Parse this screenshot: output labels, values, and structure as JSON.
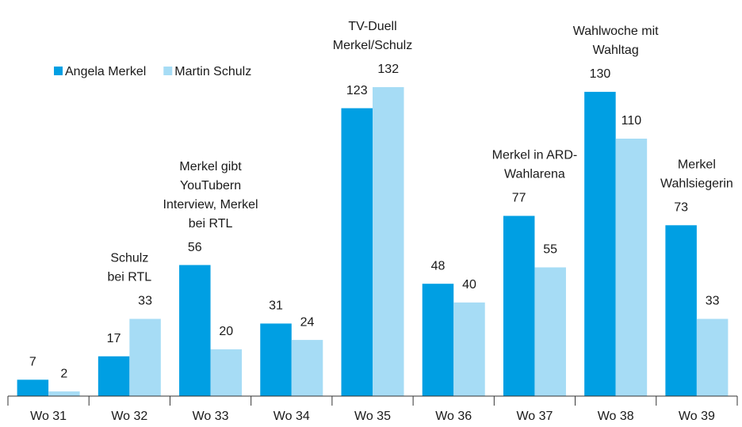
{
  "chart_data": {
    "type": "bar",
    "categories": [
      "Wo 31",
      "Wo 32",
      "Wo 33",
      "Wo 34",
      "Wo 35",
      "Wo 36",
      "Wo 37",
      "Wo 38",
      "Wo 39"
    ],
    "series": [
      {
        "name": "Angela Merkel",
        "color": "#009fe3",
        "values": [
          7,
          17,
          56,
          31,
          123,
          48,
          77,
          130,
          73
        ]
      },
      {
        "name": "Martin Schulz",
        "color": "#a6dcf5",
        "values": [
          2,
          33,
          20,
          24,
          132,
          40,
          55,
          110,
          33
        ]
      }
    ],
    "annotations": [
      {
        "category": "Wo 32",
        "lines": [
          "Schulz",
          "bei RTL"
        ]
      },
      {
        "category": "Wo 33",
        "lines": [
          "Merkel gibt",
          "YouTubern",
          "Interview, Merkel",
          "bei RTL"
        ]
      },
      {
        "category": "Wo 35",
        "lines": [
          "TV-Duell",
          "Merkel/Schulz"
        ]
      },
      {
        "category": "Wo 37",
        "lines": [
          "Merkel in ARD-",
          "Wahlarena"
        ]
      },
      {
        "category": "Wo 38",
        "lines": [
          "Wahlwoche mit",
          "Wahltag"
        ]
      },
      {
        "category": "Wo 39",
        "lines": [
          "Merkel",
          "Wahlsiegerin"
        ]
      }
    ],
    "legend": "top-left"
  }
}
